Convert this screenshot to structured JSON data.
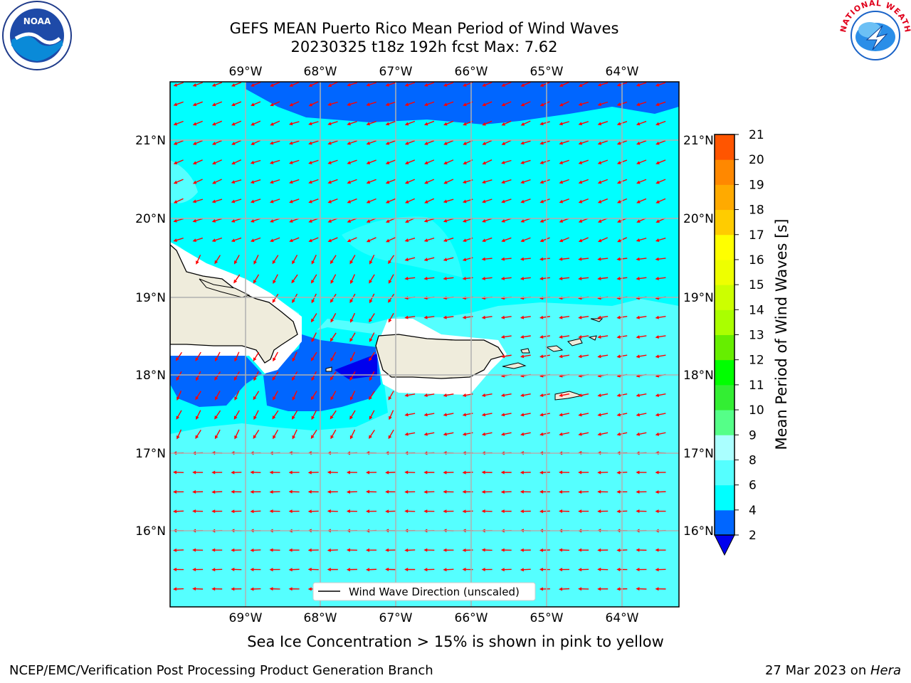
{
  "header": {
    "title_line1": "GEFS MEAN Puerto Rico Mean Period of Wind Waves",
    "title_line2": "20230325 t18z 192h fcst   Max: 7.62"
  },
  "logos": {
    "left": {
      "icon": "noaa-logo-icon",
      "text": "NOAA"
    },
    "right": {
      "icon": "nws-logo-icon",
      "text": "NATIONAL WEATHER SERVICE"
    }
  },
  "map": {
    "lon_labels": [
      "69°W",
      "68°W",
      "67°W",
      "66°W",
      "65°W",
      "64°W"
    ],
    "lat_labels": [
      "21°N",
      "20°N",
      "19°N",
      "18°N",
      "17°N",
      "16°N"
    ],
    "legend_label": "Wind Wave Direction (unscaled)",
    "arrow_color": "#ff0000",
    "land_color": "#efecdc"
  },
  "colorbar": {
    "label": "Mean Period of Wind Waves [s]",
    "ticks": [
      "2",
      "4",
      "6",
      "8",
      "9",
      "10",
      "11",
      "12",
      "13",
      "14",
      "15",
      "16",
      "17",
      "18",
      "19",
      "20",
      "21"
    ],
    "colors": [
      "#0066ff",
      "#00ffff",
      "#55ffff",
      "#aaffff",
      "#55ff88",
      "#33ee33",
      "#00ff00",
      "#66ee00",
      "#aaff00",
      "#ccff00",
      "#eeff00",
      "#ffff00",
      "#ffcc00",
      "#ffaa00",
      "#ff8800",
      "#ff5500",
      "#ff2200",
      "#ff0000"
    ],
    "under_color": "#0000ee"
  },
  "subcaption": "Sea Ice Concentration > 15% is shown in pink to yellow",
  "footer": {
    "left": "NCEP/EMC/Verification Post Processing Product Generation Branch",
    "date": "27 Mar 2023 on ",
    "host": "Hera"
  }
}
